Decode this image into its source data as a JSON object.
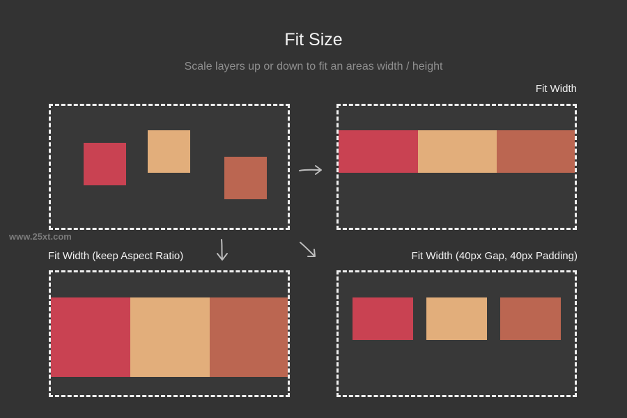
{
  "header": {
    "title": "Fit Size",
    "subtitle": "Scale layers up or down to fit an areas width / height"
  },
  "watermark": "www.25xt.com",
  "panels": {
    "original": {
      "label": ""
    },
    "fit_width": {
      "label": "Fit Width"
    },
    "fit_width_aspect": {
      "label": "Fit Width (keep Aspect Ratio)"
    },
    "fit_width_gap": {
      "label": "Fit Width (40px Gap, 40px Padding)"
    }
  },
  "colors": {
    "background": "#333333",
    "red": "#c94252",
    "tan": "#e2ae7b",
    "terracotta": "#bb6651",
    "frame_border": "#efefef"
  },
  "icons": [
    "arrow-right-icon",
    "arrow-down-icon",
    "arrow-diagonal-icon"
  ]
}
